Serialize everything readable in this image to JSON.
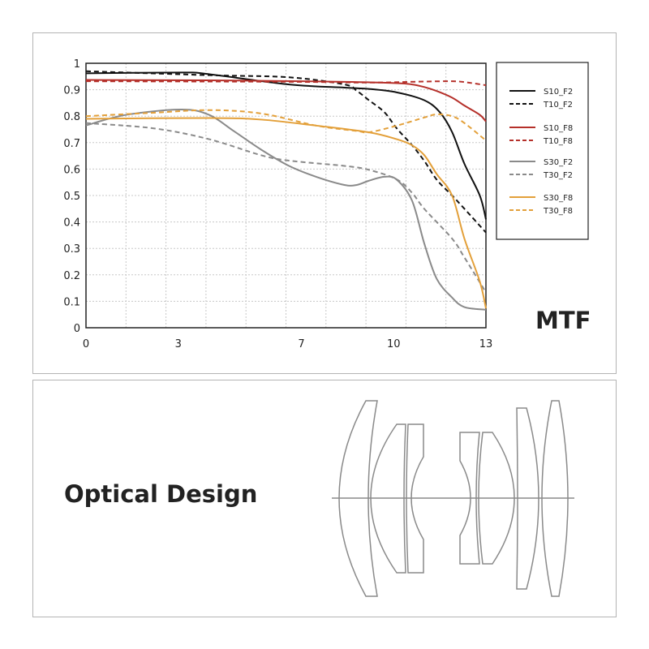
{
  "mtf_label": "MTF",
  "optical_design_label": "Optical Design",
  "chart_data": {
    "type": "line",
    "title": "",
    "xlabel": "",
    "ylabel": "",
    "xlim": [
      0,
      13
    ],
    "ylim": [
      0,
      1
    ],
    "x_ticks": [
      "0",
      "3",
      "7",
      "10",
      "13"
    ],
    "x_tick_values": [
      0,
      3,
      7,
      10,
      13
    ],
    "y_ticks": [
      "0",
      "0.1",
      "0.2",
      "0.3",
      "0.4",
      "0.5",
      "0.6",
      "0.7",
      "0.8",
      "0.9",
      "1"
    ],
    "grid": true,
    "legend_position": "right",
    "series": [
      {
        "name": "S10_F2",
        "color": "#111111",
        "dashed": false,
        "x": [
          0,
          3.1,
          3.9,
          6.6,
          8.4,
          9.2,
          10.1,
          11.0,
          11.5,
          11.9,
          12.3,
          12.8,
          13
        ],
        "y": [
          0.962,
          0.965,
          0.96,
          0.92,
          0.908,
          0.903,
          0.89,
          0.86,
          0.815,
          0.74,
          0.62,
          0.5,
          0.41
        ]
      },
      {
        "name": "T10_F2",
        "color": "#111111",
        "dashed": true,
        "x": [
          0,
          4.0,
          6.6,
          8.4,
          8.8,
          9.2,
          9.7,
          10.1,
          10.6,
          11.0,
          11.4,
          11.9,
          12.3,
          13
        ],
        "y": [
          0.97,
          0.955,
          0.947,
          0.92,
          0.896,
          0.86,
          0.815,
          0.754,
          0.69,
          0.63,
          0.56,
          0.5,
          0.45,
          0.36
        ]
      },
      {
        "name": "S10_F8",
        "color": "#b5302a",
        "dashed": false,
        "x": [
          0,
          4.8,
          8.4,
          10.1,
          10.6,
          11.0,
          11.4,
          11.9,
          12.3,
          12.8,
          13
        ],
        "y": [
          0.937,
          0.935,
          0.93,
          0.925,
          0.92,
          0.91,
          0.895,
          0.87,
          0.84,
          0.805,
          0.78
        ]
      },
      {
        "name": "T10_F8",
        "color": "#b5302a",
        "dashed": true,
        "x": [
          0,
          6.6,
          9.2,
          11.0,
          11.9,
          12.3,
          13
        ],
        "y": [
          0.932,
          0.93,
          0.927,
          0.931,
          0.932,
          0.929,
          0.917
        ]
      },
      {
        "name": "S30_F2",
        "color": "#8a8a8a",
        "dashed": false,
        "x": [
          0,
          1.3,
          3.1,
          4.0,
          4.8,
          5.7,
          6.6,
          7.5,
          8.4,
          8.8,
          9.2,
          9.7,
          10.1,
          10.6,
          11.0,
          11.4,
          11.9,
          12.3,
          13
        ],
        "y": [
          0.765,
          0.805,
          0.825,
          0.805,
          0.744,
          0.673,
          0.612,
          0.57,
          0.54,
          0.54,
          0.556,
          0.571,
          0.56,
          0.48,
          0.317,
          0.185,
          0.114,
          0.078,
          0.068
        ]
      },
      {
        "name": "T30_F2",
        "color": "#8a8a8a",
        "dashed": true,
        "x": [
          0,
          2.2,
          4.0,
          5.7,
          6.6,
          8.4,
          9.2,
          10.1,
          10.6,
          11.0,
          11.9,
          12.3,
          13
        ],
        "y": [
          0.774,
          0.754,
          0.713,
          0.652,
          0.632,
          0.612,
          0.597,
          0.561,
          0.51,
          0.449,
          0.337,
          0.266,
          0.134
        ]
      },
      {
        "name": "S30_F8",
        "color": "#e3a03a",
        "dashed": false,
        "x": [
          0,
          4.0,
          5.7,
          7.5,
          9.2,
          10.1,
          10.6,
          11.0,
          11.4,
          11.9,
          12.3,
          12.8,
          13
        ],
        "y": [
          0.79,
          0.793,
          0.787,
          0.764,
          0.739,
          0.713,
          0.69,
          0.652,
          0.581,
          0.5,
          0.337,
          0.175,
          0.073
        ]
      },
      {
        "name": "T30_F8",
        "color": "#e3a03a",
        "dashed": true,
        "x": [
          0,
          2.2,
          4.0,
          5.7,
          7.5,
          8.8,
          9.2,
          10.1,
          11.0,
          11.4,
          11.9,
          12.3,
          13
        ],
        "y": [
          0.8,
          0.813,
          0.823,
          0.81,
          0.764,
          0.744,
          0.739,
          0.764,
          0.795,
          0.807,
          0.8,
          0.774,
          0.708
        ]
      }
    ]
  }
}
